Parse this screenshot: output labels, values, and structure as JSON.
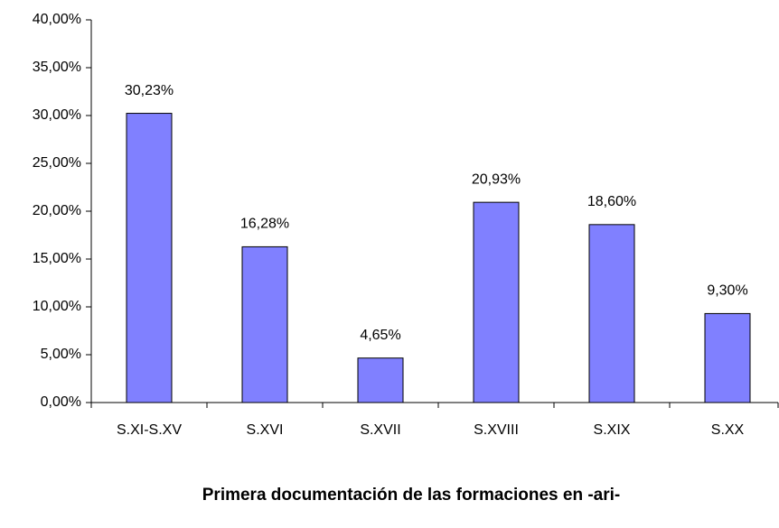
{
  "chart_data": {
    "type": "bar",
    "title": "Primera documentación de las formaciones en -ari-",
    "categories": [
      "S.XI-S.XV",
      "S.XVI",
      "S.XVII",
      "S.XVIII",
      "S.XIX",
      "S.XX"
    ],
    "values": [
      30.23,
      16.28,
      4.65,
      20.93,
      18.6,
      9.3
    ],
    "value_labels": [
      "30,23%",
      "16,28%",
      "4,65%",
      "20,93%",
      "18,60%",
      "9,30%"
    ],
    "color": "#8080ff",
    "ylim": [
      0,
      40
    ],
    "yticks": [
      {
        "value": 0,
        "label": "0,00%"
      },
      {
        "value": 5,
        "label": "5,00%"
      },
      {
        "value": 10,
        "label": "10,00%"
      },
      {
        "value": 15,
        "label": "15,00%"
      },
      {
        "value": 20,
        "label": "20,00%"
      },
      {
        "value": 25,
        "label": "25,00%"
      },
      {
        "value": 30,
        "label": "30,00%"
      },
      {
        "value": 35,
        "label": "35,00%"
      },
      {
        "value": 40,
        "label": "40,00%"
      }
    ],
    "grid": false
  }
}
